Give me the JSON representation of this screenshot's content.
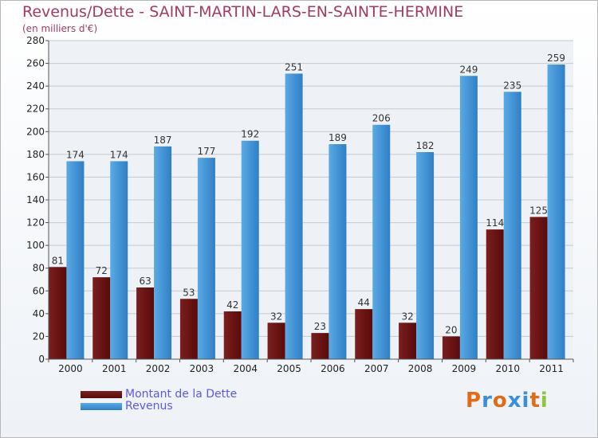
{
  "title": "Revenus/Dette - SAINT-MARTIN-LARS-EN-SAINTE-HERMINE",
  "subtitle": "(en milliers d'€)",
  "colors": {
    "dette": "#7a1f1f",
    "dette_dark": "#5a0a0a",
    "revenus": "#5aaae6",
    "revenus_dark": "#2f7fc4",
    "title": "#a43a63"
  },
  "legend": {
    "dette_label": "Montant de la Dette",
    "revenus_label": "Revenus"
  },
  "logo": {
    "text": "Proxiti",
    "letter_colors": [
      "#e06c1a",
      "#3a8fd8",
      "#e06c1a",
      "#3a8fd8",
      "#3a8fd8",
      "#e06c1a",
      "#8fc640"
    ]
  },
  "chart_data": {
    "type": "bar",
    "categories": [
      "2000",
      "2001",
      "2002",
      "2003",
      "2004",
      "2005",
      "2006",
      "2007",
      "2008",
      "2009",
      "2010",
      "2011"
    ],
    "series": [
      {
        "name": "Montant de la Dette",
        "values": [
          81,
          72,
          63,
          53,
          42,
          32,
          23,
          44,
          32,
          20,
          114,
          125
        ]
      },
      {
        "name": "Revenus",
        "values": [
          174,
          174,
          187,
          177,
          192,
          251,
          189,
          206,
          182,
          249,
          235,
          259
        ]
      }
    ],
    "ylim": [
      0,
      280
    ],
    "yticks": [
      0,
      20,
      40,
      60,
      80,
      100,
      120,
      140,
      160,
      180,
      200,
      220,
      240,
      260,
      280
    ],
    "grid": true,
    "legend_position": "bottom-left"
  }
}
